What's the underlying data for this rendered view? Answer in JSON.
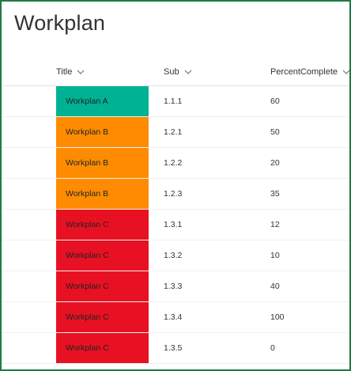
{
  "page": {
    "title": "Workplan"
  },
  "columns": [
    {
      "label": "Title"
    },
    {
      "label": "Sub"
    },
    {
      "label": "PercentComplete"
    }
  ],
  "status_colors": {
    "A": "#00b294",
    "B": "#ff8c00",
    "C": "#e81123"
  },
  "rows": [
    {
      "title": "Workplan A",
      "group": "A",
      "sub": "1.1.1",
      "percent": "60"
    },
    {
      "title": "Workplan B",
      "group": "B",
      "sub": "1.2.1",
      "percent": "50"
    },
    {
      "title": "Workplan B",
      "group": "B",
      "sub": "1.2.2",
      "percent": "20"
    },
    {
      "title": "Workplan B",
      "group": "B",
      "sub": "1.2.3",
      "percent": "35"
    },
    {
      "title": "Workplan C",
      "group": "C",
      "sub": "1.3.1",
      "percent": "12"
    },
    {
      "title": "Workplan C",
      "group": "C",
      "sub": "1.3.2",
      "percent": "10"
    },
    {
      "title": "Workplan C",
      "group": "C",
      "sub": "1.3.3",
      "percent": "40"
    },
    {
      "title": "Workplan C",
      "group": "C",
      "sub": "1.3.4",
      "percent": "100"
    },
    {
      "title": "Workplan C",
      "group": "C",
      "sub": "1.3.5",
      "percent": "0"
    }
  ]
}
